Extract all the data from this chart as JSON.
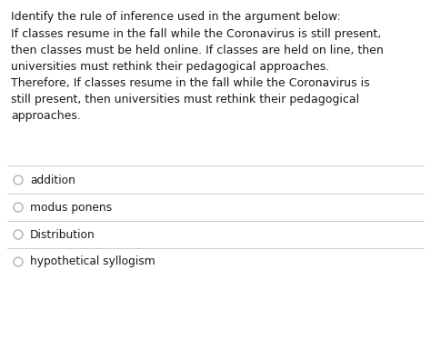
{
  "background_color": "#ffffff",
  "title_text": "Identify the rule of inference used in the argument below:",
  "body_text": "If classes resume in the fall while the Coronavirus is still present,\nthen classes must be held online. If classes are held on line, then\nuniversities must rethink their pedagogical approaches.\nTherefore, If classes resume in the fall while the Coronavirus is\nstill present, then universities must rethink their pedagogical\napproaches.",
  "options": [
    "addition",
    "modus ponens",
    "Distribution",
    "hypothetical syllogism"
  ],
  "title_fontsize": 9.0,
  "body_fontsize": 9.0,
  "option_fontsize": 8.8,
  "title_color": "#1a1a1a",
  "body_color": "#1a1a1a",
  "option_color": "#1a1a1a",
  "divider_color": "#cccccc",
  "radio_color": "#b0b0b0"
}
